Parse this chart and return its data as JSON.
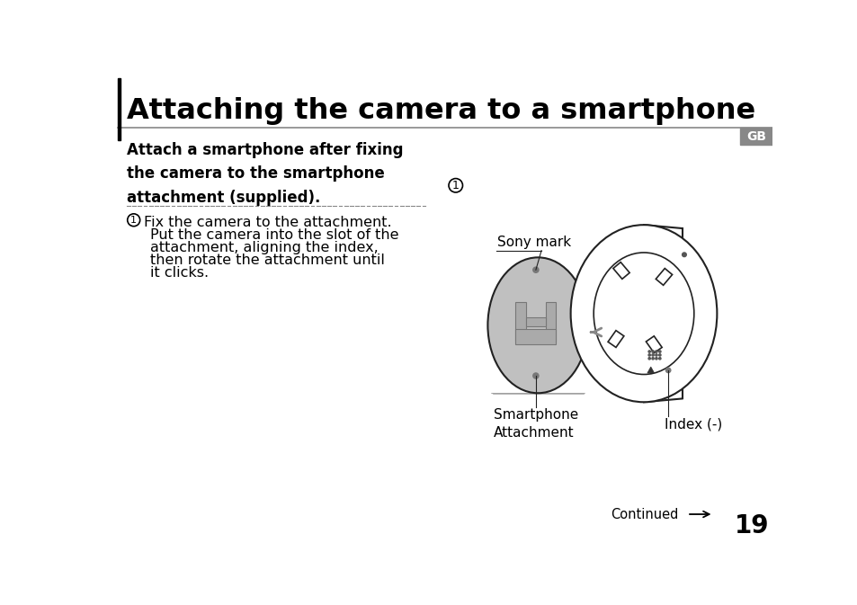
{
  "title": "Attaching the camera to a smartphone",
  "subtitle_bold": "Attach a smartphone after fixing\nthe camera to the smartphone\nattachment (supplied).",
  "step_text_line1": "Fix the camera to the attachment.",
  "step_text_line2": "Put the camera into the slot of the",
  "step_text_line3": "attachment, aligning the index,",
  "step_text_line4": "then rotate the attachment until",
  "step_text_line5": "it clicks.",
  "label_sony": "Sony mark",
  "label_smartphone": "Smartphone\nAttachment",
  "label_index": "Index (-)",
  "continued_text": "Continued",
  "page_number": "19",
  "gb_label": "GB",
  "bg_color": "#ffffff",
  "text_color": "#000000",
  "gray_color": "#808080",
  "attachment_fill": "#c0c0c0",
  "attachment_h_fill": "#999999",
  "line_color": "#222222"
}
